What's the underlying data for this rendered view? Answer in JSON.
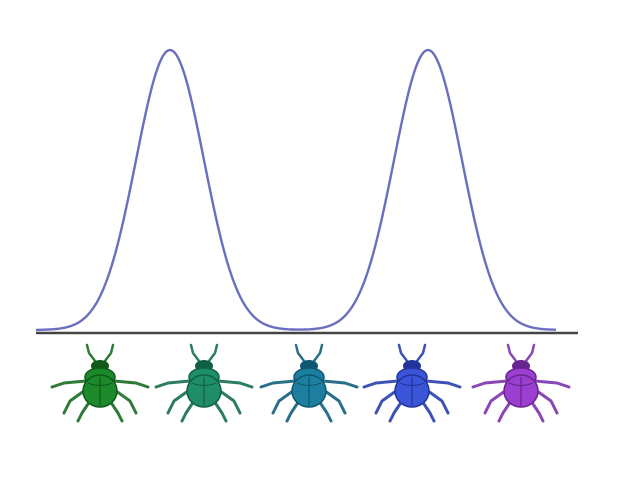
{
  "diagram": {
    "curve": {
      "type": "bimodal",
      "color": "#6b6fbf",
      "peaks": 2,
      "peak_beetle_indices": [
        1,
        4
      ]
    },
    "baseline_color": "#444444",
    "beetles": [
      {
        "name": "beetle-green",
        "body": "#1c8a2a",
        "dark": "#0f5a18",
        "leg": "#2f7a36"
      },
      {
        "name": "beetle-teal-green",
        "body": "#1f8d66",
        "dark": "#106047",
        "leg": "#2c7d5d"
      },
      {
        "name": "beetle-teal",
        "body": "#1d7fa0",
        "dark": "#0f5670",
        "leg": "#2a6f89"
      },
      {
        "name": "beetle-blue",
        "body": "#3b55d8",
        "dark": "#22349a",
        "leg": "#3d52b5"
      },
      {
        "name": "beetle-purple",
        "body": "#9b3fd0",
        "dark": "#67238f",
        "leg": "#8a46b5"
      }
    ]
  }
}
